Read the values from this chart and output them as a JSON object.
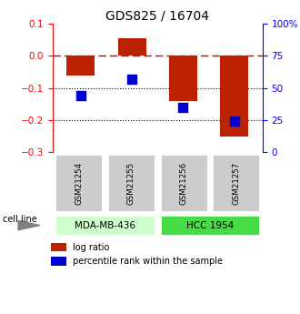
{
  "title": "GDS825 / 16704",
  "samples": [
    "GSM21254",
    "GSM21255",
    "GSM21256",
    "GSM21257"
  ],
  "log_ratios": [
    -0.062,
    0.055,
    -0.14,
    -0.25
  ],
  "percentile_ranks": [
    0.44,
    0.57,
    0.35,
    0.24
  ],
  "cell_lines": [
    {
      "label": "MDA-MB-436",
      "samples": [
        0,
        1
      ],
      "color": "#ccffcc"
    },
    {
      "label": "HCC 1954",
      "samples": [
        2,
        3
      ],
      "color": "#44dd44"
    }
  ],
  "ylim": [
    -0.3,
    0.1
  ],
  "yticks": [
    -0.3,
    -0.2,
    -0.1,
    0.0,
    0.1
  ],
  "right_yticks_val": [
    -0.3,
    -0.2,
    -0.1,
    0.0,
    0.1
  ],
  "right_yticks_label": [
    "0",
    "25",
    "50",
    "75",
    "100%"
  ],
  "bar_color": "#bb2200",
  "dot_color": "#0000cc",
  "bar_width": 0.55,
  "dot_size": 45,
  "hline_color_0": "#cc0000",
  "hline_color_dotted": "#000000",
  "grid_dotted_vals": [
    -0.1,
    -0.2
  ],
  "legend_log_ratio": "log ratio",
  "legend_percentile": "percentile rank within the sample",
  "cell_line_label": "cell line",
  "sample_box_color": "#cccccc",
  "title_fontsize": 10,
  "tick_fontsize": 7.5,
  "label_fontsize": 7.5
}
